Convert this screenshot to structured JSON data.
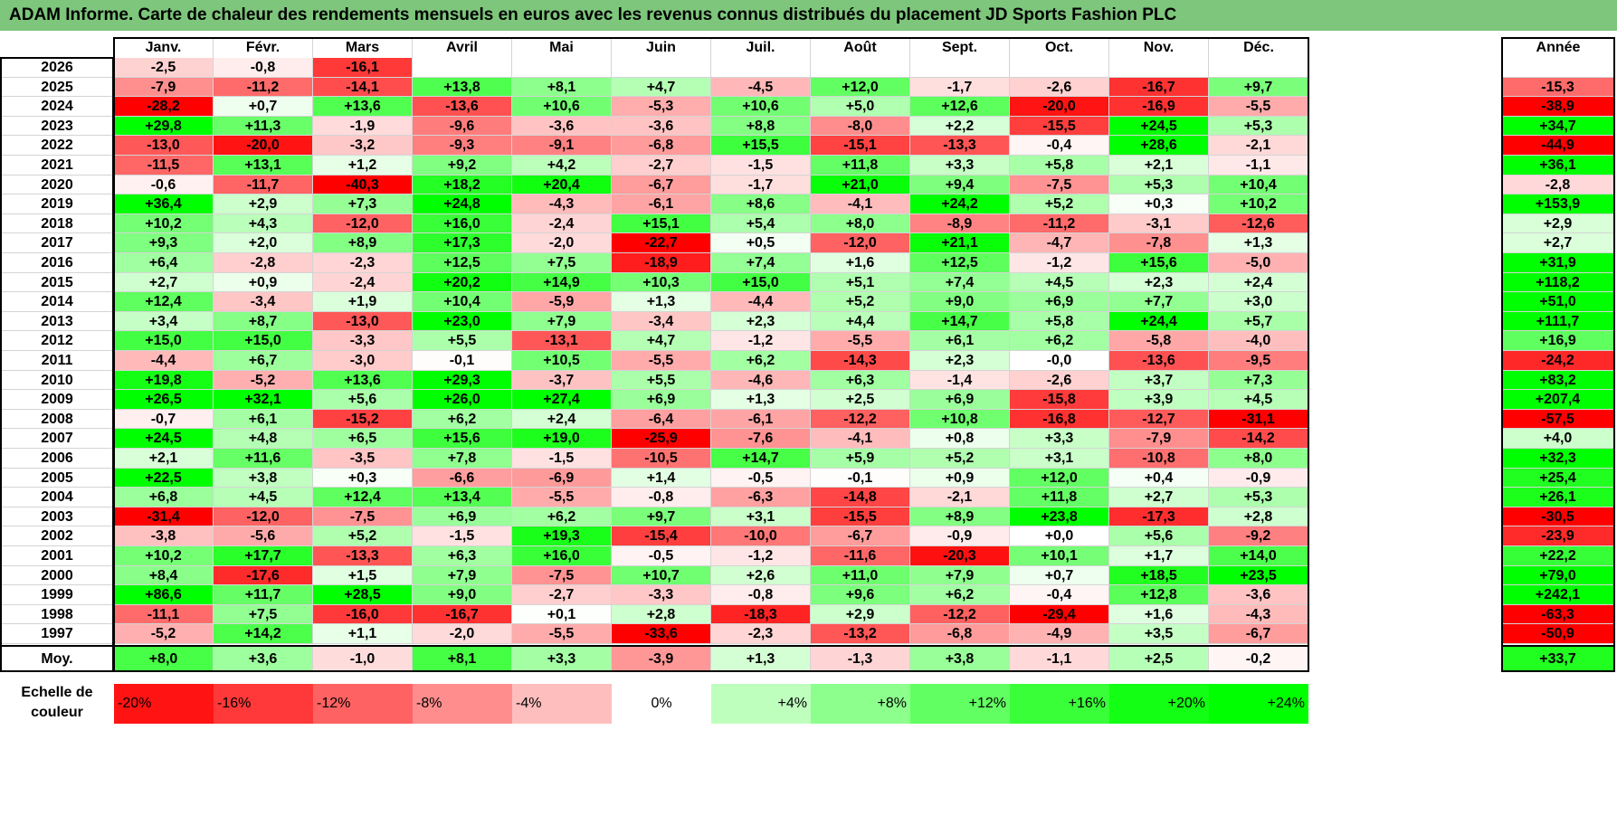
{
  "title": "ADAM Informe. Carte de chaleur des rendements mensuels en euros avec les revenus connus distribués du placement JD Sports Fashion PLC",
  "months": [
    "Janv.",
    "Févr.",
    "Mars",
    "Avril",
    "Mai",
    "Juin",
    "Juil.",
    "Août",
    "Sept.",
    "Oct.",
    "Nov.",
    "Déc."
  ],
  "annual_header": "Année",
  "avg_label": "Moy.",
  "scale_label_line1": "Echelle de",
  "scale_label_line2": "couleur",
  "colors": {
    "title_bg": "#7dc67b",
    "negative": "#ff0000",
    "positive": "#00ff00",
    "neutral": "#ffffff"
  },
  "chart_data": {
    "type": "heatmap",
    "title": "ADAM Informe. Carte de chaleur des rendements mensuels en euros avec les revenus connus distribués du placement JD Sports Fashion PLC",
    "columns": [
      "Janv.",
      "Févr.",
      "Mars",
      "Avril",
      "Mai",
      "Juin",
      "Juil.",
      "Août",
      "Sept.",
      "Oct.",
      "Nov.",
      "Déc."
    ],
    "rows": [
      {
        "year": "2026",
        "values": [
          "-2,5",
          "-0,8",
          "-16,1",
          "",
          "",
          "",
          "",
          "",
          "",
          "",
          "",
          ""
        ],
        "annual": ""
      },
      {
        "year": "2025",
        "values": [
          "-7,9",
          "-11,2",
          "-14,1",
          "+13,8",
          "+8,1",
          "+4,7",
          "-4,5",
          "+12,0",
          "-1,7",
          "-2,6",
          "-16,7",
          "+9,7"
        ],
        "annual": "-15,3"
      },
      {
        "year": "2024",
        "values": [
          "-28,2",
          "+0,7",
          "+13,6",
          "-13,6",
          "+10,6",
          "-5,3",
          "+10,6",
          "+5,0",
          "+12,6",
          "-20,0",
          "-16,9",
          "-5,5"
        ],
        "annual": "-38,9"
      },
      {
        "year": "2023",
        "values": [
          "+29,8",
          "+11,3",
          "-1,9",
          "-9,6",
          "-3,6",
          "-3,6",
          "+8,8",
          "-8,0",
          "+2,2",
          "-15,5",
          "+24,5",
          "+5,3"
        ],
        "annual": "+34,7"
      },
      {
        "year": "2022",
        "values": [
          "-13,0",
          "-20,0",
          "-3,2",
          "-9,3",
          "-9,1",
          "-6,8",
          "+15,5",
          "-15,1",
          "-13,3",
          "-0,4",
          "+28,6",
          "-2,1"
        ],
        "annual": "-44,9"
      },
      {
        "year": "2021",
        "values": [
          "-11,5",
          "+13,1",
          "+1,2",
          "+9,2",
          "+4,2",
          "-2,7",
          "-1,5",
          "+11,8",
          "+3,3",
          "+5,8",
          "+2,1",
          "-1,1"
        ],
        "annual": "+36,1"
      },
      {
        "year": "2020",
        "values": [
          "-0,6",
          "-11,7",
          "-40,3",
          "+18,2",
          "+20,4",
          "-6,7",
          "-1,7",
          "+21,0",
          "+9,4",
          "-7,5",
          "+5,3",
          "+10,4"
        ],
        "annual": "-2,8"
      },
      {
        "year": "2019",
        "values": [
          "+36,4",
          "+2,9",
          "+7,3",
          "+24,8",
          "-4,3",
          "-6,1",
          "+8,6",
          "-4,1",
          "+24,2",
          "+5,2",
          "+0,3",
          "+10,2"
        ],
        "annual": "+153,9"
      },
      {
        "year": "2018",
        "values": [
          "+10,2",
          "+4,3",
          "-12,0",
          "+16,0",
          "-2,4",
          "+15,1",
          "+5,4",
          "+8,0",
          "-8,9",
          "-11,2",
          "-3,1",
          "-12,6"
        ],
        "annual": "+2,9"
      },
      {
        "year": "2017",
        "values": [
          "+9,3",
          "+2,0",
          "+8,9",
          "+17,3",
          "-2,0",
          "-22,7",
          "+0,5",
          "-12,0",
          "+21,1",
          "-4,7",
          "-7,8",
          "+1,3"
        ],
        "annual": "+2,7"
      },
      {
        "year": "2016",
        "values": [
          "+6,4",
          "-2,8",
          "-2,3",
          "+12,5",
          "+7,5",
          "-18,9",
          "+7,4",
          "+1,6",
          "+12,5",
          "-1,2",
          "+15,6",
          "-5,0"
        ],
        "annual": "+31,9"
      },
      {
        "year": "2015",
        "values": [
          "+2,7",
          "+0,9",
          "-2,4",
          "+20,2",
          "+14,9",
          "+10,3",
          "+15,0",
          "+5,1",
          "+7,4",
          "+4,5",
          "+2,3",
          "+2,4"
        ],
        "annual": "+118,2"
      },
      {
        "year": "2014",
        "values": [
          "+12,4",
          "-3,4",
          "+1,9",
          "+10,4",
          "-5,9",
          "+1,3",
          "-4,4",
          "+5,2",
          "+9,0",
          "+6,9",
          "+7,7",
          "+3,0"
        ],
        "annual": "+51,0"
      },
      {
        "year": "2013",
        "values": [
          "+3,4",
          "+8,7",
          "-13,0",
          "+23,0",
          "+7,9",
          "-3,4",
          "+2,3",
          "+4,4",
          "+14,7",
          "+5,8",
          "+24,4",
          "+5,7"
        ],
        "annual": "+111,7"
      },
      {
        "year": "2012",
        "values": [
          "+15,0",
          "+15,0",
          "-3,3",
          "+5,5",
          "-13,1",
          "+4,7",
          "-1,2",
          "-5,5",
          "+6,1",
          "+6,2",
          "-5,8",
          "-4,0"
        ],
        "annual": "+16,9"
      },
      {
        "year": "2011",
        "values": [
          "-4,4",
          "+6,7",
          "-3,0",
          "-0,1",
          "+10,5",
          "-5,5",
          "+6,2",
          "-14,3",
          "+2,3",
          "-0,0",
          "-13,6",
          "-9,5"
        ],
        "annual": "-24,2"
      },
      {
        "year": "2010",
        "values": [
          "+19,8",
          "-5,2",
          "+13,6",
          "+29,3",
          "-3,7",
          "+5,5",
          "-4,6",
          "+6,3",
          "-1,4",
          "-2,6",
          "+3,7",
          "+7,3"
        ],
        "annual": "+83,2"
      },
      {
        "year": "2009",
        "values": [
          "+26,5",
          "+32,1",
          "+5,6",
          "+26,0",
          "+27,4",
          "+6,9",
          "+1,3",
          "+2,5",
          "+6,9",
          "-15,8",
          "+3,9",
          "+4,5"
        ],
        "annual": "+207,4"
      },
      {
        "year": "2008",
        "values": [
          "-0,7",
          "+6,1",
          "-15,2",
          "+6,2",
          "+2,4",
          "-6,4",
          "-6,1",
          "-12,2",
          "+10,8",
          "-16,8",
          "-12,7",
          "-31,1"
        ],
        "annual": "-57,5"
      },
      {
        "year": "2007",
        "values": [
          "+24,5",
          "+4,8",
          "+6,5",
          "+15,6",
          "+19,0",
          "-25,9",
          "-7,6",
          "-4,1",
          "+0,8",
          "+3,3",
          "-7,9",
          "-14,2"
        ],
        "annual": "+4,0"
      },
      {
        "year": "2006",
        "values": [
          "+2,1",
          "+11,6",
          "-3,5",
          "+7,8",
          "-1,5",
          "-10,5",
          "+14,7",
          "+5,9",
          "+5,2",
          "+3,1",
          "-10,8",
          "+8,0"
        ],
        "annual": "+32,3"
      },
      {
        "year": "2005",
        "values": [
          "+22,5",
          "+3,8",
          "+0,3",
          "-6,6",
          "-6,9",
          "+1,4",
          "-0,5",
          "-0,1",
          "+0,9",
          "+12,0",
          "+0,4",
          "-0,9"
        ],
        "annual": "+25,4"
      },
      {
        "year": "2004",
        "values": [
          "+6,8",
          "+4,5",
          "+12,4",
          "+13,4",
          "-5,5",
          "-0,8",
          "-6,3",
          "-14,8",
          "-2,1",
          "+11,8",
          "+2,7",
          "+5,3"
        ],
        "annual": "+26,1"
      },
      {
        "year": "2003",
        "values": [
          "-31,4",
          "-12,0",
          "-7,5",
          "+6,9",
          "+6,2",
          "+9,7",
          "+3,1",
          "-15,5",
          "+8,9",
          "+23,8",
          "-17,3",
          "+2,8"
        ],
        "annual": "-30,5"
      },
      {
        "year": "2002",
        "values": [
          "-3,8",
          "-5,6",
          "+5,2",
          "-1,5",
          "+19,3",
          "-15,4",
          "-10,0",
          "-6,7",
          "-0,9",
          "+0,0",
          "+5,6",
          "-9,2"
        ],
        "annual": "-23,9"
      },
      {
        "year": "2001",
        "values": [
          "+10,2",
          "+17,7",
          "-13,3",
          "+6,3",
          "+16,0",
          "-0,5",
          "-1,2",
          "-11,6",
          "-20,3",
          "+10,1",
          "+1,7",
          "+14,0"
        ],
        "annual": "+22,2"
      },
      {
        "year": "2000",
        "values": [
          "+8,4",
          "-17,6",
          "+1,5",
          "+7,9",
          "-7,5",
          "+10,7",
          "+2,6",
          "+11,0",
          "+7,9",
          "+0,7",
          "+18,5",
          "+23,5"
        ],
        "annual": "+79,0"
      },
      {
        "year": "1999",
        "values": [
          "+86,6",
          "+11,7",
          "+28,5",
          "+9,0",
          "-2,7",
          "-3,3",
          "-0,8",
          "+9,6",
          "+6,2",
          "-0,4",
          "+12,8",
          "-3,6"
        ],
        "annual": "+242,1"
      },
      {
        "year": "1998",
        "values": [
          "-11,1",
          "+7,5",
          "-16,0",
          "-16,7",
          "+0,1",
          "+2,8",
          "-18,3",
          "+2,9",
          "-12,2",
          "-29,4",
          "+1,6",
          "-4,3"
        ],
        "annual": "-63,3"
      },
      {
        "year": "1997",
        "values": [
          "-5,2",
          "+14,2",
          "+1,1",
          "-2,0",
          "-5,5",
          "-33,6",
          "-2,3",
          "-13,2",
          "-6,8",
          "-4,9",
          "+3,5",
          "-6,7"
        ],
        "annual": "-50,9"
      }
    ],
    "average": {
      "values": [
        "+8,0",
        "+3,6",
        "-1,0",
        "+8,1",
        "+3,3",
        "-3,9",
        "+1,3",
        "-1,3",
        "+3,8",
        "-1,1",
        "+2,5",
        "-0,2"
      ],
      "annual": "+33,7"
    },
    "color_scale": [
      "-20%",
      "-16%",
      "-12%",
      "-8%",
      "-4%",
      "0%",
      "+4%",
      "+8%",
      "+12%",
      "+16%",
      "+20%",
      "+24%"
    ],
    "scale_values": [
      -20,
      -16,
      -12,
      -8,
      -4,
      0,
      4,
      8,
      12,
      16,
      20,
      24
    ]
  }
}
